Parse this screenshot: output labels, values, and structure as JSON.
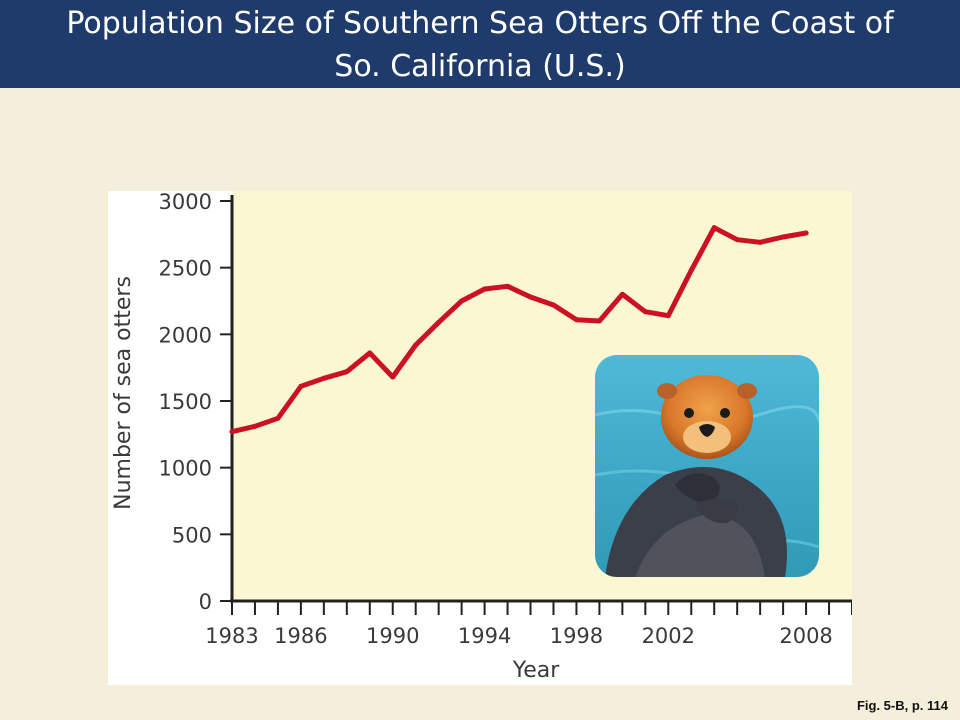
{
  "header": {
    "title_line1": "Population Size of Southern Sea Otters Off the Coast of",
    "title_line2": "So. California (U.S.)"
  },
  "caption": "Fig. 5-B, p. 114",
  "photo": {
    "subject": "sea-otter-photo"
  },
  "colors": {
    "header_bg": "#1f3b6b",
    "page_bg": "#f3efda",
    "plot_bg": "#fbf7d2",
    "line": "#cc1122"
  },
  "chart_data": {
    "type": "line",
    "xlabel": "Year",
    "ylabel": "Number of sea otters",
    "xlim": [
      1983,
      2010
    ],
    "ylim": [
      0,
      3000
    ],
    "x_ticks_labeled": [
      1983,
      1986,
      1990,
      1994,
      1998,
      2002,
      2008
    ],
    "x_tick_labels": [
      "1983",
      "1986",
      "1990",
      "1994",
      "1998",
      "2002",
      "2008"
    ],
    "y_ticks": [
      0,
      500,
      1000,
      1500,
      2000,
      2500,
      3000
    ],
    "y_tick_labels": [
      "0",
      "500",
      "1000",
      "1500",
      "2000",
      "2500",
      "3000"
    ],
    "grid": false,
    "series": [
      {
        "x": [
          1983,
          1984,
          1985,
          1986,
          1987,
          1988,
          1989,
          1990,
          1991,
          1992,
          1993,
          1994,
          1995,
          1996,
          1997,
          1998,
          1999,
          2000,
          2001,
          2002,
          2003,
          2004,
          2005,
          2006,
          2007,
          2008
        ],
        "values": [
          1270,
          1310,
          1370,
          1610,
          1670,
          1720,
          1860,
          1680,
          1920,
          2090,
          2250,
          2340,
          2360,
          2280,
          2220,
          2110,
          2100,
          2300,
          2170,
          2140,
          2480,
          2800,
          2710,
          2690,
          2730,
          2760
        ]
      }
    ]
  }
}
